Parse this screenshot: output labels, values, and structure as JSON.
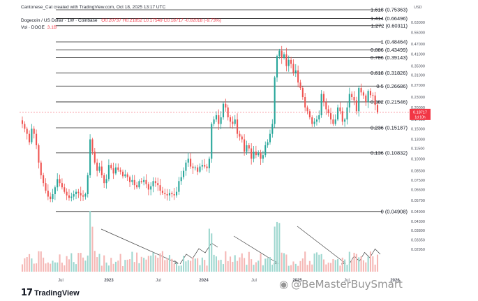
{
  "header": {
    "source": "Cantonese_Cat created with TradingView.com, Oct 18, 2025 13:17 UTC",
    "symbol": "Dogecoin / US Dollar · 1W · Coinbase",
    "ohlc": "O0.20737 H0.21852 L0.17549 C0.18717 -0.02018 (-9.73%)",
    "volume_label": "Vol · DOGE",
    "volume_value": "3.1B"
  },
  "footer": {
    "logo_text": "TradingView",
    "watermark": "@BeMasterBuySmart"
  },
  "colors": {
    "up": "#26a69a",
    "down": "#ef5350",
    "vol_up": "#9ed7cf",
    "vol_down": "#f5b7b5",
    "fib": "#222222",
    "trend": "#444444",
    "last_price_bg": "#f23645"
  },
  "chart_data": {
    "type": "candlestick",
    "title": "Dogecoin / US Dollar · 1W · Coinbase",
    "price_scale": "log",
    "y_unit": "USD",
    "ylim": [
      0.0278,
      0.664
    ],
    "price_ticks": [
      "0.63000",
      "0.55000",
      "0.47000",
      "0.41000",
      "0.35000",
      "0.31000",
      "0.27000",
      "0.23000",
      "0.20000",
      "0.17000",
      "0.15000",
      "0.13000",
      "0.11500",
      "0.10000",
      "0.08500",
      "0.07500",
      "0.06600",
      "0.05700",
      "0.04900",
      "0.04300",
      "0.03800",
      "0.03350",
      "0.02950"
    ],
    "x_tick_labels": [
      "Jul",
      "2023",
      "Jul",
      "2024",
      "Jul",
      "2025",
      "Jul",
      "2026"
    ],
    "last_price": "0.18717",
    "last_price_countdown": "1d 10h",
    "fib_levels": [
      {
        "ratio": "1.618",
        "price": 0.75363,
        "label": "1.618 (0.75363)"
      },
      {
        "ratio": "1.414",
        "price": 0.66496,
        "label": "1.414 (0.66496)"
      },
      {
        "ratio": "1.272",
        "price": 0.60311,
        "label": "1.272 (0.60311)"
      },
      {
        "ratio": "1",
        "price": 0.48464,
        "label": "1 (0.48464)"
      },
      {
        "ratio": "0.886",
        "price": 0.43499,
        "label": "0.886 (0.43499)"
      },
      {
        "ratio": "0.786",
        "price": 0.39143,
        "label": "0.786 (0.39143)"
      },
      {
        "ratio": "0.618",
        "price": 0.31826,
        "label": "0.618 (0.31826)"
      },
      {
        "ratio": "0.5",
        "price": 0.26686,
        "label": "0.5 (0.26686)"
      },
      {
        "ratio": "0.382",
        "price": 0.21546,
        "label": "0.382 (0.21546)"
      },
      {
        "ratio": "0.236",
        "price": 0.15187,
        "label": "0.236 (0.15187)"
      },
      {
        "ratio": "0.136",
        "price": 0.10832,
        "label": "0.136 (0.10832)"
      },
      {
        "ratio": "0",
        "price": 0.04908,
        "label": "0 (0.04908)"
      }
    ],
    "closes": [
      0.16,
      0.15,
      0.14,
      0.125,
      0.15,
      0.14,
      0.12,
      0.095,
      0.08,
      0.072,
      0.065,
      0.06,
      0.058,
      0.062,
      0.068,
      0.076,
      0.072,
      0.068,
      0.064,
      0.061,
      0.059,
      0.06,
      0.062,
      0.064,
      0.063,
      0.061,
      0.06,
      0.062,
      0.08,
      0.13,
      0.11,
      0.095,
      0.085,
      0.09,
      0.08,
      0.072,
      0.076,
      0.092,
      0.088,
      0.082,
      0.089,
      0.086,
      0.084,
      0.079,
      0.081,
      0.078,
      0.073,
      0.075,
      0.07,
      0.068,
      0.074,
      0.073,
      0.075,
      0.071,
      0.066,
      0.069,
      0.074,
      0.072,
      0.07,
      0.065,
      0.063,
      0.062,
      0.061,
      0.063,
      0.062,
      0.061,
      0.064,
      0.074,
      0.078,
      0.085,
      0.095,
      0.1,
      0.09,
      0.088,
      0.089,
      0.084,
      0.09,
      0.092,
      0.09,
      0.088,
      0.1,
      0.16,
      0.17,
      0.18,
      0.16,
      0.175,
      0.21,
      0.2,
      0.175,
      0.165,
      0.16,
      0.17,
      0.14,
      0.135,
      0.13,
      0.11,
      0.12,
      0.115,
      0.1,
      0.11,
      0.105,
      0.108,
      0.1,
      0.105,
      0.12,
      0.125,
      0.14,
      0.16,
      0.3,
      0.4,
      0.43,
      0.39,
      0.41,
      0.35,
      0.38,
      0.36,
      0.32,
      0.33,
      0.28,
      0.26,
      0.23,
      0.2,
      0.19,
      0.175,
      0.16,
      0.165,
      0.17,
      0.18,
      0.24,
      0.215,
      0.195,
      0.185,
      0.17,
      0.16,
      0.17,
      0.2,
      0.19,
      0.165,
      0.17,
      0.2,
      0.24,
      0.23,
      0.22,
      0.19,
      0.26,
      0.245,
      0.235,
      0.215,
      0.25,
      0.236,
      0.235,
      0.207,
      0.187
    ],
    "series": [
      {
        "name": "Vol · DOGE",
        "type": "volume_bars"
      }
    ]
  }
}
